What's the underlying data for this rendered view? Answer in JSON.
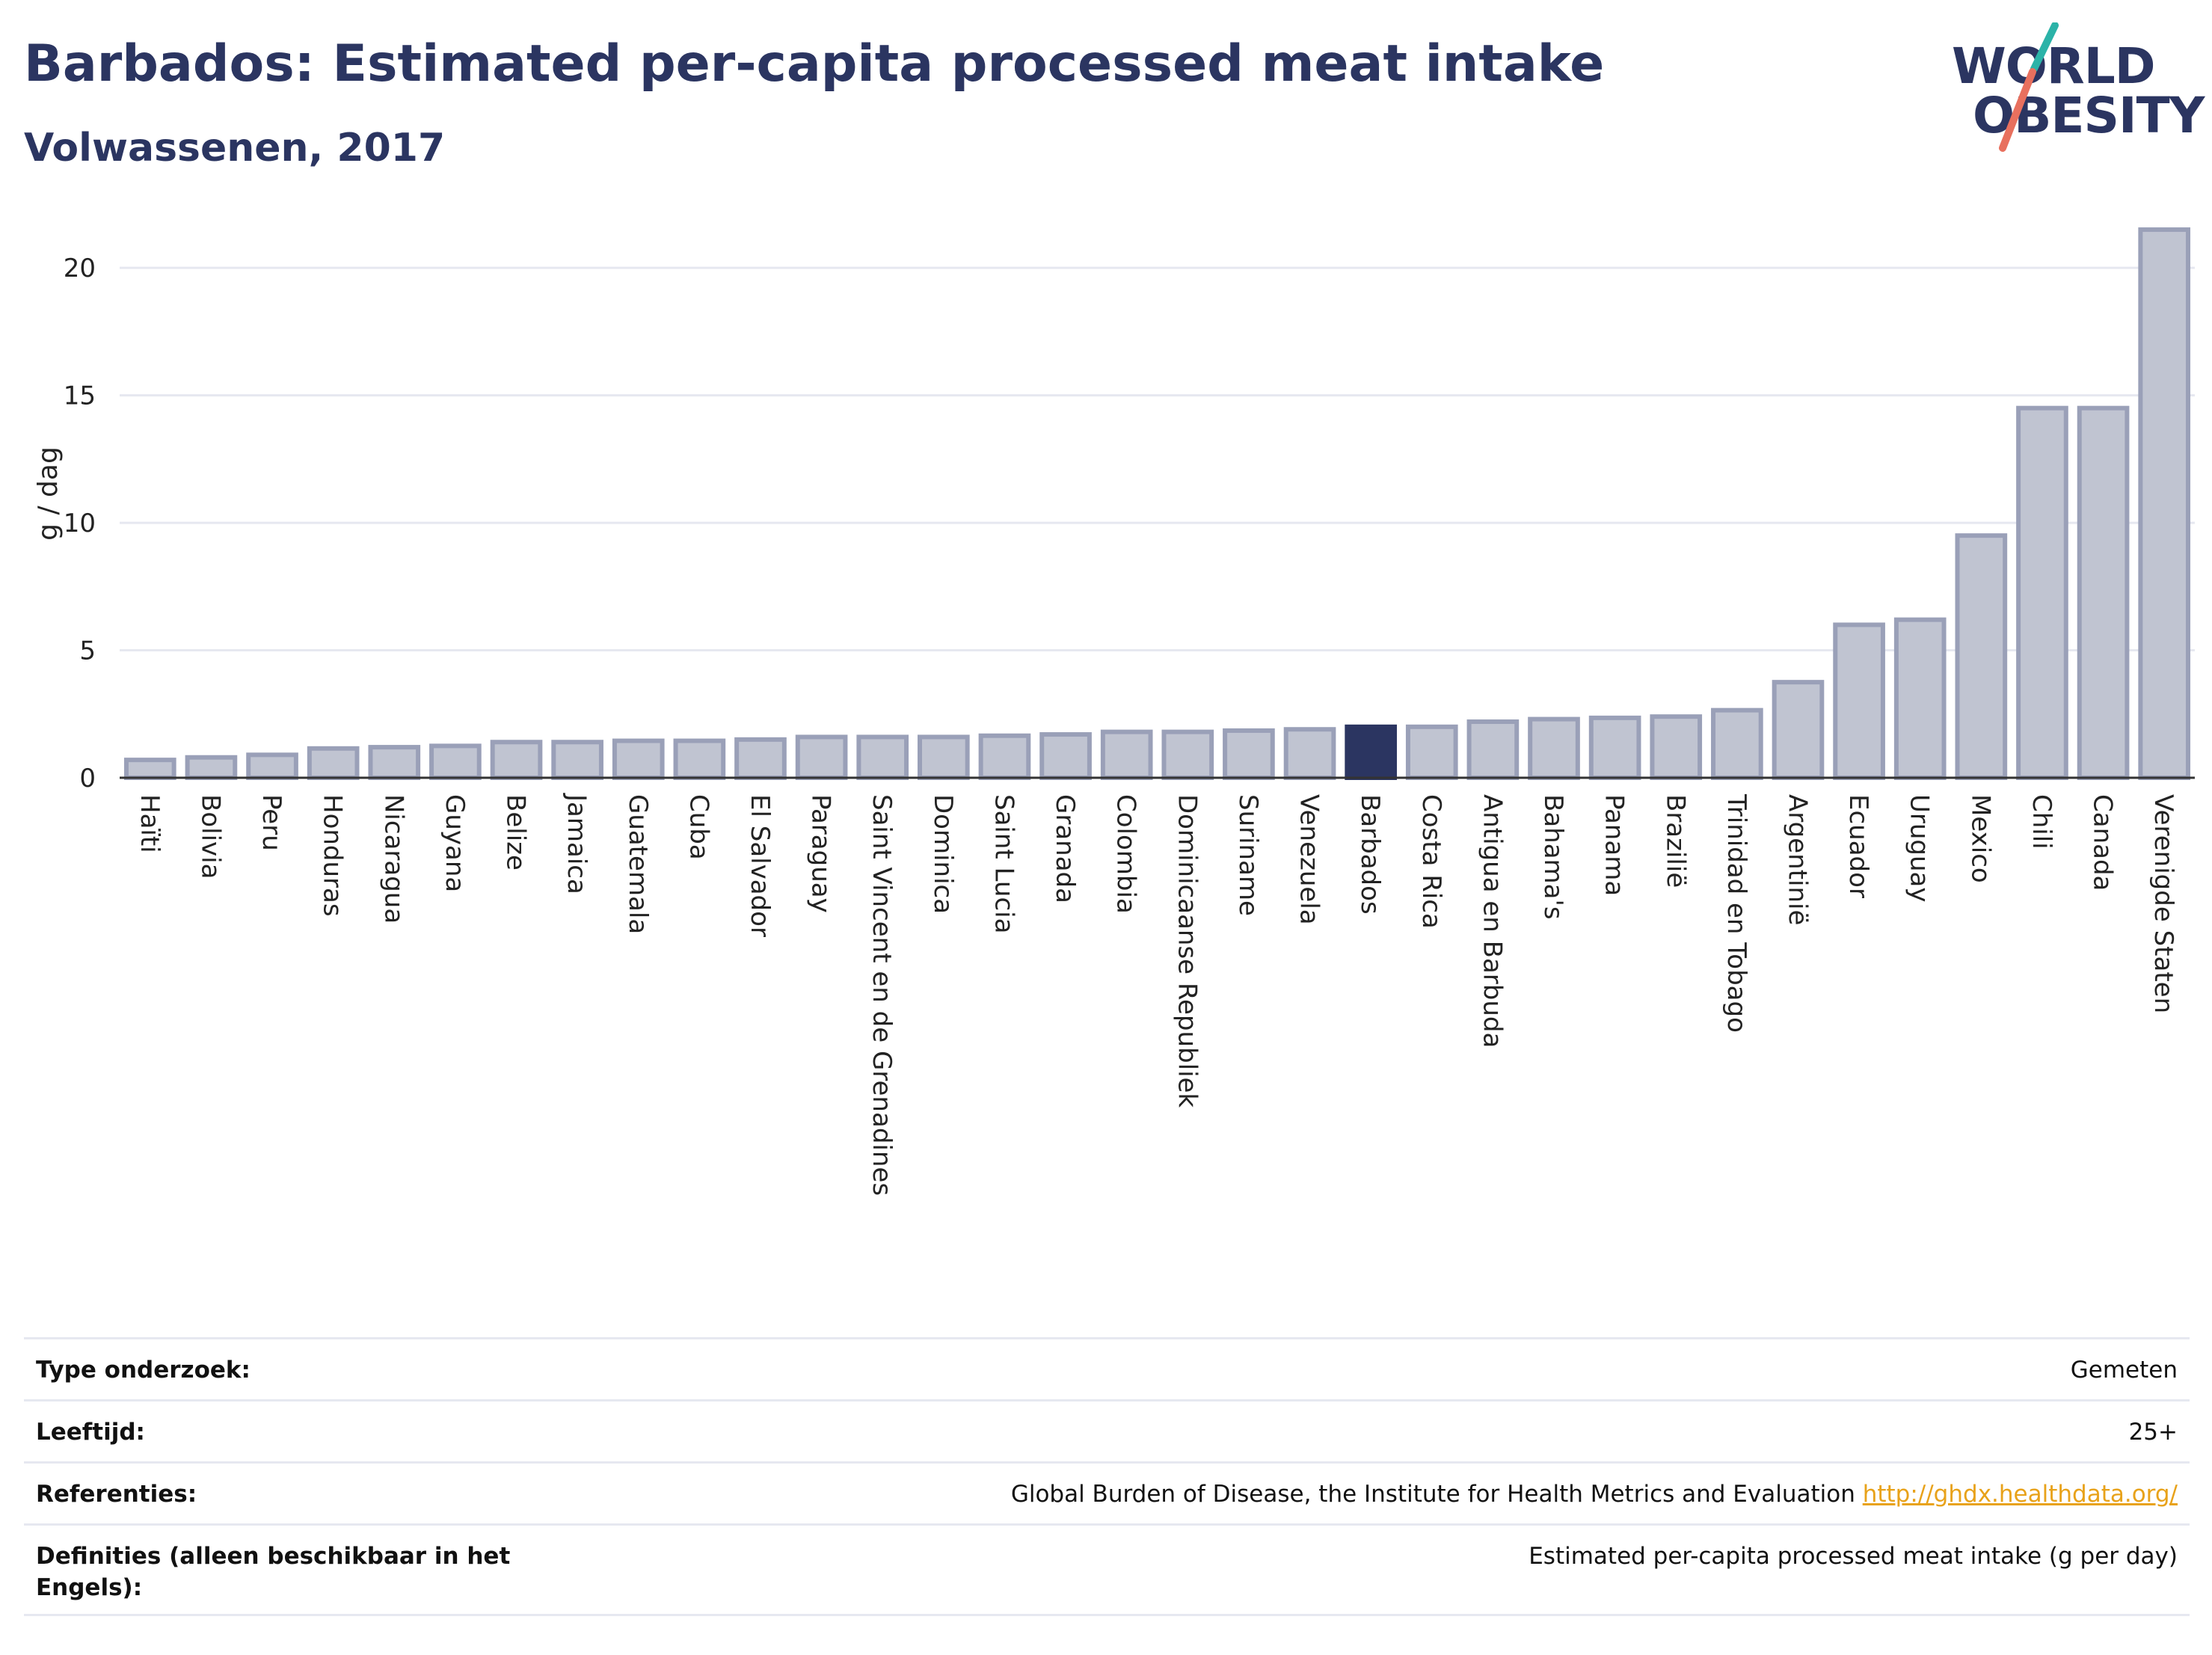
{
  "header": {
    "title": "Barbados: Estimated per-capita processed meat intake",
    "subtitle": "Volwassenen, 2017"
  },
  "logo": {
    "line1": "WORLD",
    "line2": "OBESITY"
  },
  "colors": {
    "bar": "#c0c4d1",
    "bar_border": "#9aa0b8",
    "highlight": "#2b3561",
    "grid": "#e6e8f0",
    "title": "#2b3561",
    "link": "#e8a21a"
  },
  "chart_data": {
    "type": "bar",
    "ylabel": "g / dag",
    "ylim": [
      0,
      22
    ],
    "yticks": [
      0,
      5,
      10,
      15,
      20
    ],
    "grid": true,
    "highlight": "Barbados",
    "categories": [
      "Haïti",
      "Bolivia",
      "Peru",
      "Honduras",
      "Nicaragua",
      "Guyana",
      "Belize",
      "Jamaica",
      "Guatemala",
      "Cuba",
      "El Salvador",
      "Paraguay",
      "Saint Vincent en de Grenadines",
      "Dominica",
      "Saint Lucia",
      "Granada",
      "Colombia",
      "Dominicaanse Republiek",
      "Suriname",
      "Venezuela",
      "Barbados",
      "Costa Rica",
      "Antigua en Barbuda",
      "Bahama's",
      "Panama",
      "Brazilië",
      "Trinidad en Tobago",
      "Argentinië",
      "Ecuador",
      "Uruguay",
      "Mexico",
      "Chili",
      "Canada",
      "Verenigde Staten"
    ],
    "values": [
      0.7,
      0.8,
      0.9,
      1.15,
      1.2,
      1.25,
      1.4,
      1.4,
      1.45,
      1.45,
      1.5,
      1.6,
      1.6,
      1.6,
      1.65,
      1.7,
      1.8,
      1.8,
      1.85,
      1.9,
      2.0,
      2.0,
      2.2,
      2.3,
      2.35,
      2.4,
      2.65,
      3.75,
      6.0,
      6.2,
      9.5,
      14.5,
      14.5,
      21.5
    ]
  },
  "details": {
    "survey_type_label": "Type onderzoek:",
    "survey_type_value": "Gemeten",
    "age_label": "Leeftijd:",
    "age_value": "25+",
    "references_label": "Referenties:",
    "references_value": "Global Burden of Disease, the Institute for Health Metrics and Evaluation ",
    "references_link": "http://ghdx.healthdata.org/",
    "definitions_label": "Definities (alleen beschikbaar in het Engels):",
    "definitions_value": "Estimated per-capita processed meat intake (g per day)"
  }
}
